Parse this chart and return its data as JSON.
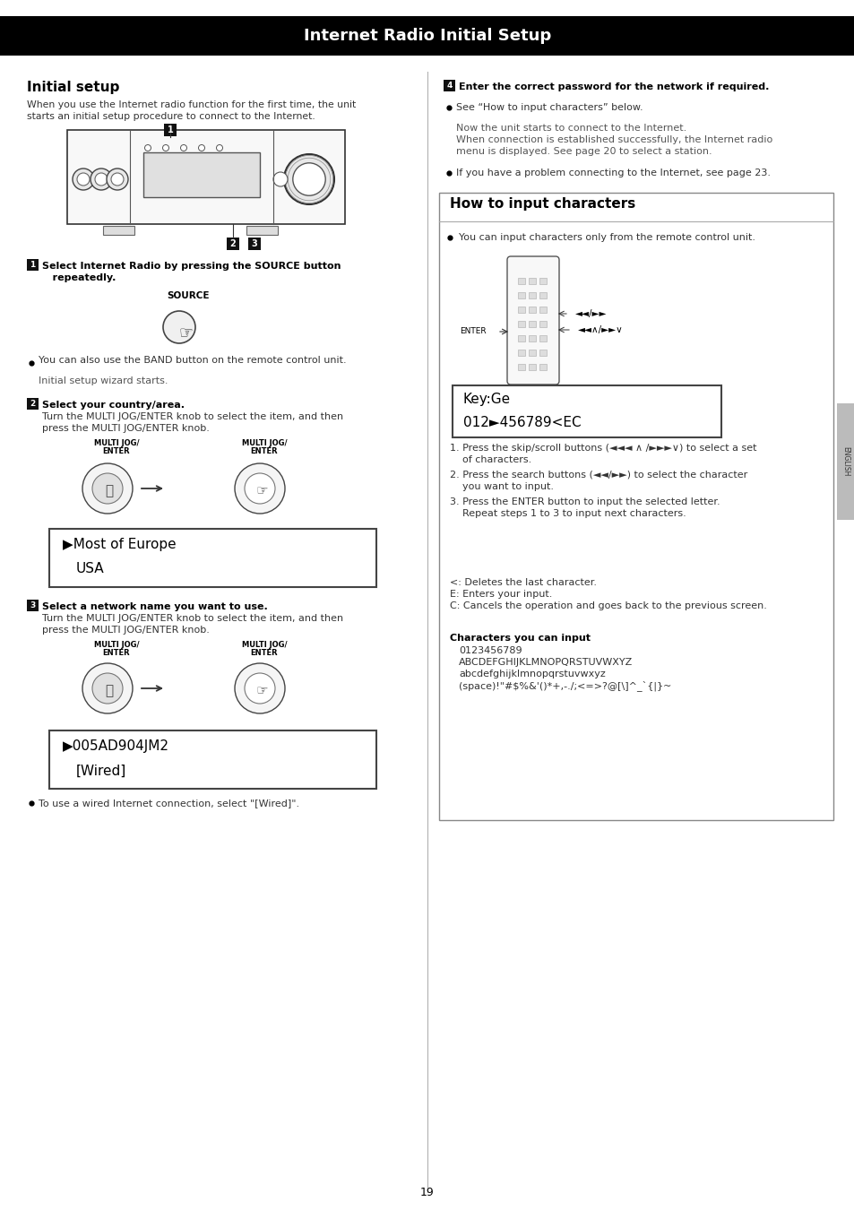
{
  "title": "Internet Radio Initial Setup",
  "page_bg": "#ffffff",
  "page_number": "19",
  "section_title": "Initial setup",
  "section_body1": "When you use the Internet radio function for the first time, the unit",
  "section_body2": "starts an initial setup procedure to connect to the Internet.",
  "step1_text1": "Select Internet Radio by pressing the SOURCE button",
  "step1_text2": "repeatedly.",
  "step1_bullet": "You can also use the BAND button on the remote control unit.",
  "step1_note": "Initial setup wizard starts.",
  "step2_title": "Select your country/area.",
  "step2_body1": "Turn the MULTI JOG/ENTER knob to select the item, and then",
  "step2_body2": "press the MULTI JOG/ENTER knob.",
  "disp2_line1": "▶Most of Europe",
  "disp2_line2": "USA",
  "step3_title": "Select a network name you want to use.",
  "step3_body1": "Turn the MULTI JOG/ENTER knob to select the item, and then",
  "step3_body2": "press the MULTI JOG/ENTER knob.",
  "disp3_line1": "▶005AD904JM2",
  "disp3_line2": "[Wired]",
  "step3_bullet": "To use a wired Internet connection, select \"[Wired]\".",
  "step4_title": "Enter the correct password for the network if required.",
  "step4_b1": "See “How to input characters” below.",
  "step4_note1": "Now the unit starts to connect to the Internet.",
  "step4_note2": "When connection is established successfully, the Internet radio",
  "step4_note3": "menu is displayed. See page 20 to select a station.",
  "step4_b2": "If you have a problem connecting to the Internet, see page 23.",
  "how_to_title": "How to input characters",
  "how_to_bullet": "You can input characters only from the remote control unit.",
  "enter_label": "ENTER",
  "skipscroll_label": "◄◄/►►",
  "skipscroll2_label": "◄◄∧/►►∨",
  "display_text_line1": "Key:Ge",
  "display_text_line2": "012►456789<EC",
  "inst1": "1. Press the skip/scroll buttons (◄◄◄ ∧ /►►►∨) to select a set",
  "inst1b": "    of characters.",
  "inst2": "2. Press the search buttons (◄◄/►►) to select the character",
  "inst2b": "    you want to input.",
  "inst3": "3. Press the ENTER button to input the selected letter.",
  "inst3b": "    Repeat steps 1 to 3 to input next characters.",
  "leg1": "<: Deletes the last character.",
  "leg2": "E: Enters your input.",
  "leg3": "C: Cancels the operation and goes back to the previous screen.",
  "chars_title": "Characters you can input",
  "chars1": "0123456789",
  "chars2": "ABCDEFGHIJKLMNOPQRSTUVWXYZ",
  "chars3": "abcdefghijklmnopqrstuvwxyz",
  "chars4": "(space)!\"#$%&'()*+,-./;<=>?@[\\]^_`{|}~"
}
